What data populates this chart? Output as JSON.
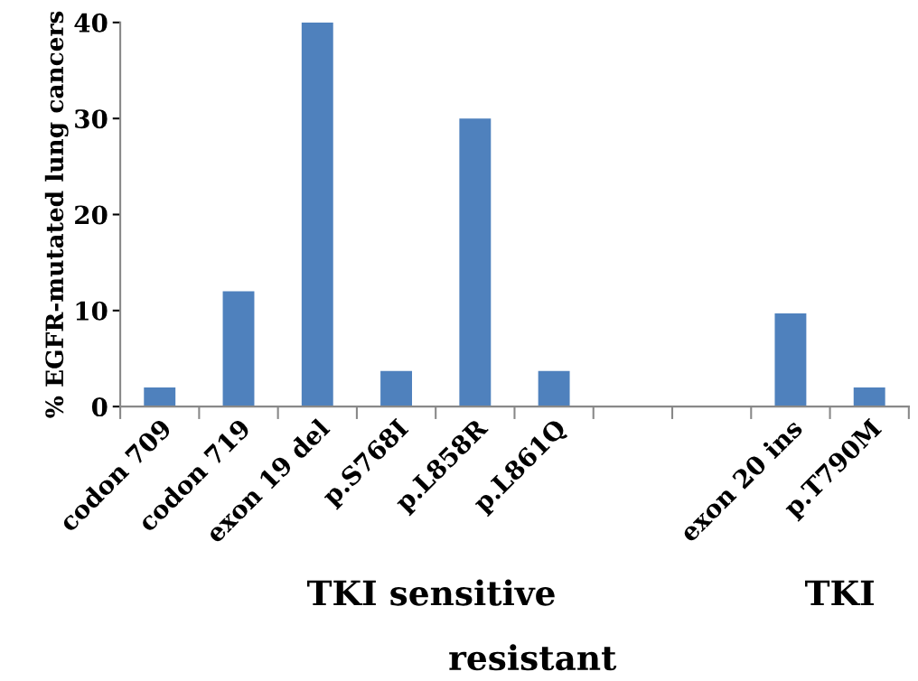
{
  "chart_data": {
    "type": "bar",
    "ylabel": "% EGFR-mutated lung cancers",
    "categories": [
      "codon 709",
      "codon 719",
      "exon 19 del",
      "p.S768I",
      "p.L858R",
      "p.L861Q",
      null,
      null,
      "exon 20 ins",
      "p.T790M"
    ],
    "values": [
      2,
      12,
      40,
      3.7,
      30,
      3.7,
      null,
      null,
      9.7,
      2
    ],
    "color": "#4f81bd",
    "ylim": [
      0,
      40
    ],
    "yticks": [
      0,
      10,
      20,
      30,
      40
    ],
    "annotations": [
      "TKI sensitive",
      "TKI",
      "resistant"
    ]
  }
}
